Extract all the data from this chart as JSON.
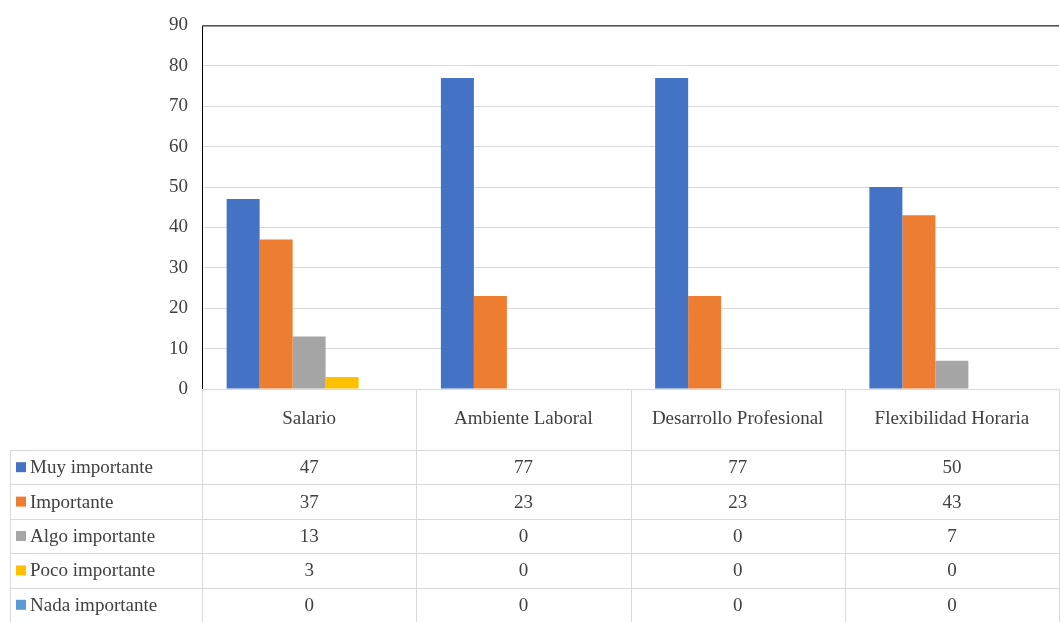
{
  "chart_data": {
    "type": "bar",
    "categories": [
      "Salario",
      "Ambiente Laboral",
      "Desarrollo Profesional",
      "Flexibilidad Horaria"
    ],
    "series": [
      {
        "name": "Muy importante",
        "color": "#4472c4",
        "values": [
          47,
          77,
          77,
          50
        ]
      },
      {
        "name": "Importante",
        "color": "#ed7d31",
        "values": [
          37,
          23,
          23,
          43
        ]
      },
      {
        "name": "Algo importante",
        "color": "#a5a5a5",
        "values": [
          13,
          0,
          0,
          7
        ]
      },
      {
        "name": "Poco importante",
        "color": "#ffc000",
        "values": [
          3,
          0,
          0,
          0
        ]
      },
      {
        "name": "Nada importante",
        "color": "#5b9bd5",
        "values": [
          0,
          0,
          0,
          0
        ]
      }
    ],
    "ylim": [
      0,
      90
    ],
    "yticks": [
      0,
      10,
      20,
      30,
      40,
      50,
      60,
      70,
      80,
      90
    ],
    "grid": "y",
    "legend": "bottom",
    "data_labels": true
  }
}
